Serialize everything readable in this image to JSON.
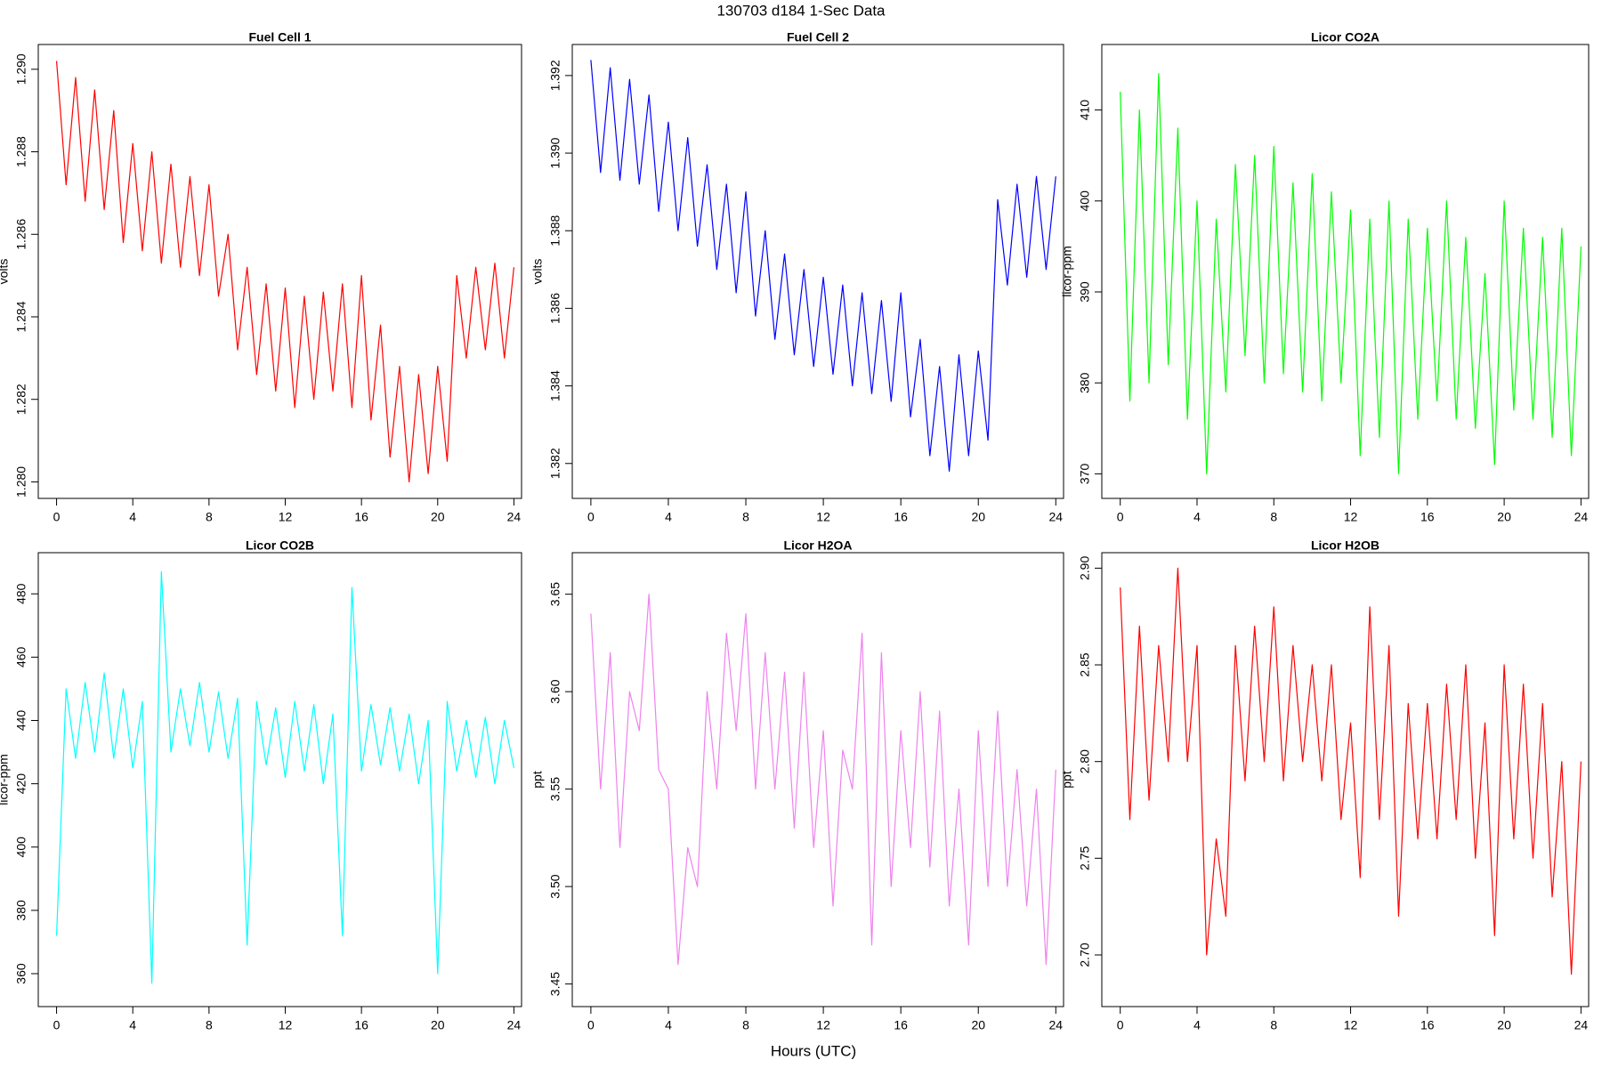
{
  "title": "130703   d184   1-Sec Data",
  "xlabel": "Hours (UTC)",
  "chart_data": [
    {
      "type": "line",
      "title": "Fuel Cell 1",
      "ylabel": "volts",
      "color": "#ff0000",
      "x": [
        0,
        0.5,
        1,
        1.5,
        2,
        2.5,
        3,
        3.5,
        4,
        4.5,
        5,
        5.5,
        6,
        6.5,
        7,
        7.5,
        8,
        8.5,
        9,
        9.5,
        10,
        10.5,
        11,
        11.5,
        12,
        12.5,
        13,
        13.5,
        14,
        14.5,
        15,
        15.5,
        16,
        16.5,
        17,
        17.5,
        18,
        18.5,
        19,
        19.5,
        20,
        20.5,
        21,
        21.5,
        22,
        22.5,
        23,
        23.5,
        24
      ],
      "values": [
        1.2902,
        1.2872,
        1.2898,
        1.2868,
        1.2895,
        1.2866,
        1.289,
        1.2858,
        1.2882,
        1.2856,
        1.288,
        1.2853,
        1.2877,
        1.2852,
        1.2874,
        1.285,
        1.2872,
        1.2845,
        1.286,
        1.2832,
        1.2852,
        1.2826,
        1.2848,
        1.2822,
        1.2847,
        1.2818,
        1.2845,
        1.282,
        1.2846,
        1.2822,
        1.2848,
        1.2818,
        1.285,
        1.2815,
        1.2838,
        1.2806,
        1.2828,
        1.28,
        1.2826,
        1.2802,
        1.2828,
        1.2805,
        1.285,
        1.283,
        1.2852,
        1.2832,
        1.2853,
        1.283,
        1.2852
      ],
      "xlim": [
        -0.96,
        24.4
      ],
      "xticks": [
        0,
        4,
        8,
        12,
        16,
        20,
        24
      ],
      "ylim": [
        1.2796,
        1.2906
      ],
      "yticks": [
        {
          "value": 1.28,
          "label": "1.280"
        },
        {
          "value": 1.282,
          "label": "1.282"
        },
        {
          "value": 1.284,
          "label": "1.284"
        },
        {
          "value": 1.286,
          "label": "1.286"
        },
        {
          "value": 1.288,
          "label": "1.288"
        },
        {
          "value": 1.29,
          "label": "1.290"
        }
      ]
    },
    {
      "type": "line",
      "title": "Fuel Cell 2",
      "ylabel": "volts",
      "color": "#0000ff",
      "x": [
        0,
        0.5,
        1,
        1.5,
        2,
        2.5,
        3,
        3.5,
        4,
        4.5,
        5,
        5.5,
        6,
        6.5,
        7,
        7.5,
        8,
        8.5,
        9,
        9.5,
        10,
        10.5,
        11,
        11.5,
        12,
        12.5,
        13,
        13.5,
        14,
        14.5,
        15,
        15.5,
        16,
        16.5,
        17,
        17.5,
        18,
        18.5,
        19,
        19.5,
        20,
        20.5,
        21,
        21.5,
        22,
        22.5,
        23,
        23.5,
        24
      ],
      "values": [
        1.3924,
        1.3895,
        1.3922,
        1.3893,
        1.3919,
        1.3892,
        1.3915,
        1.3885,
        1.3908,
        1.388,
        1.3904,
        1.3876,
        1.3897,
        1.387,
        1.3892,
        1.3864,
        1.389,
        1.3858,
        1.388,
        1.3852,
        1.3874,
        1.3848,
        1.387,
        1.3845,
        1.3868,
        1.3843,
        1.3866,
        1.384,
        1.3864,
        1.3838,
        1.3862,
        1.3836,
        1.3864,
        1.3832,
        1.3852,
        1.3822,
        1.3845,
        1.3818,
        1.3848,
        1.3822,
        1.3849,
        1.3826,
        1.3888,
        1.3866,
        1.3892,
        1.3868,
        1.3894,
        1.387,
        1.3894
      ],
      "xlim": [
        -0.96,
        24.4
      ],
      "xticks": [
        0,
        4,
        8,
        12,
        16,
        20,
        24
      ],
      "ylim": [
        1.3811,
        1.3928
      ],
      "yticks": [
        {
          "value": 1.382,
          "label": "1.382"
        },
        {
          "value": 1.384,
          "label": "1.384"
        },
        {
          "value": 1.386,
          "label": "1.386"
        },
        {
          "value": 1.388,
          "label": "1.388"
        },
        {
          "value": 1.39,
          "label": "1.390"
        },
        {
          "value": 1.392,
          "label": "1.392"
        }
      ]
    },
    {
      "type": "line",
      "title": "Licor CO2A",
      "ylabel": "licor-ppm",
      "color": "#00ff00",
      "x": [
        0,
        0.5,
        1,
        1.5,
        2,
        2.5,
        3,
        3.5,
        4,
        4.5,
        5,
        5.5,
        6,
        6.5,
        7,
        7.5,
        8,
        8.5,
        9,
        9.5,
        10,
        10.5,
        11,
        11.5,
        12,
        12.5,
        13,
        13.5,
        14,
        14.5,
        15,
        15.5,
        16,
        16.5,
        17,
        17.5,
        18,
        18.5,
        19,
        19.5,
        20,
        20.5,
        21,
        21.5,
        22,
        22.5,
        23,
        23.5,
        24
      ],
      "values": [
        412,
        378,
        410,
        380,
        414,
        382,
        408,
        376,
        400,
        370,
        398,
        379,
        404,
        383,
        405,
        380,
        406,
        381,
        402,
        379,
        403,
        378,
        401,
        380,
        399,
        372,
        398,
        374,
        400,
        370,
        398,
        376,
        397,
        378,
        400,
        376,
        396,
        375,
        392,
        371,
        400,
        377,
        397,
        376,
        396,
        374,
        397,
        372,
        395
      ],
      "xlim": [
        -0.96,
        24.4
      ],
      "xticks": [
        0,
        4,
        8,
        12,
        16,
        20,
        24
      ],
      "ylim": [
        367.3,
        417.2
      ],
      "yticks": [
        370,
        380,
        390,
        400,
        410
      ]
    },
    {
      "type": "line",
      "title": "Licor CO2B",
      "ylabel": "licor-ppm",
      "color": "#00ffff",
      "x": [
        0,
        0.5,
        1,
        1.5,
        2,
        2.5,
        3,
        3.5,
        4,
        4.5,
        5,
        5.5,
        6,
        6.5,
        7,
        7.5,
        8,
        8.5,
        9,
        9.5,
        10,
        10.5,
        11,
        11.5,
        12,
        12.5,
        13,
        13.5,
        14,
        14.5,
        15,
        15.5,
        16,
        16.5,
        17,
        17.5,
        18,
        18.5,
        19,
        19.5,
        20,
        20.5,
        21,
        21.5,
        22,
        22.5,
        23,
        23.5,
        24
      ],
      "values": [
        372,
        450,
        428,
        452,
        430,
        455,
        428,
        450,
        425,
        446,
        357,
        487,
        430,
        450,
        432,
        452,
        430,
        449,
        428,
        447,
        369,
        446,
        426,
        444,
        422,
        446,
        424,
        445,
        420,
        442,
        372,
        482,
        424,
        445,
        426,
        444,
        424,
        442,
        420,
        440,
        360,
        446,
        424,
        440,
        422,
        441,
        420,
        440,
        425
      ],
      "xlim": [
        -0.96,
        24.4
      ],
      "xticks": [
        0,
        4,
        8,
        12,
        16,
        20,
        24
      ],
      "ylim": [
        349.6,
        493
      ],
      "yticks": [
        360,
        380,
        400,
        420,
        440,
        460,
        480
      ]
    },
    {
      "type": "line",
      "title": "Licor H2OA",
      "ylabel": "ppt",
      "color": "#ee82ee",
      "x": [
        0,
        0.5,
        1,
        1.5,
        2,
        2.5,
        3,
        3.5,
        4,
        4.5,
        5,
        5.5,
        6,
        6.5,
        7,
        7.5,
        8,
        8.5,
        9,
        9.5,
        10,
        10.5,
        11,
        11.5,
        12,
        12.5,
        13,
        13.5,
        14,
        14.5,
        15,
        15.5,
        16,
        16.5,
        17,
        17.5,
        18,
        18.5,
        19,
        19.5,
        20,
        20.5,
        21,
        21.5,
        22,
        22.5,
        23,
        23.5,
        24
      ],
      "values": [
        3.64,
        3.55,
        3.62,
        3.52,
        3.6,
        3.58,
        3.65,
        3.56,
        3.55,
        3.46,
        3.52,
        3.5,
        3.6,
        3.55,
        3.63,
        3.58,
        3.64,
        3.55,
        3.62,
        3.55,
        3.61,
        3.53,
        3.61,
        3.52,
        3.58,
        3.49,
        3.57,
        3.55,
        3.63,
        3.47,
        3.62,
        3.5,
        3.58,
        3.52,
        3.6,
        3.51,
        3.59,
        3.49,
        3.55,
        3.47,
        3.58,
        3.5,
        3.59,
        3.5,
        3.56,
        3.49,
        3.55,
        3.46,
        3.56
      ],
      "xlim": [
        -0.96,
        24.4
      ],
      "xticks": [
        0,
        4,
        8,
        12,
        16,
        20,
        24
      ],
      "ylim": [
        3.4384,
        3.6713
      ],
      "yticks": [
        3.45,
        {
          "value": 3.5,
          "label": "3.50"
        },
        3.55,
        {
          "value": 3.6,
          "label": "3.60"
        },
        3.65
      ]
    },
    {
      "type": "line",
      "title": "Licor H2OB",
      "ylabel": "ppt",
      "color": "#ff0000",
      "x": [
        0,
        0.5,
        1,
        1.5,
        2,
        2.5,
        3,
        3.5,
        4,
        4.5,
        5,
        5.5,
        6,
        6.5,
        7,
        7.5,
        8,
        8.5,
        9,
        9.5,
        10,
        10.5,
        11,
        11.5,
        12,
        12.5,
        13,
        13.5,
        14,
        14.5,
        15,
        15.5,
        16,
        16.5,
        17,
        17.5,
        18,
        18.5,
        19,
        19.5,
        20,
        20.5,
        21,
        21.5,
        22,
        22.5,
        23,
        23.5,
        24
      ],
      "values": [
        2.89,
        2.77,
        2.87,
        2.78,
        2.86,
        2.8,
        2.9,
        2.8,
        2.86,
        2.7,
        2.76,
        2.72,
        2.86,
        2.79,
        2.87,
        2.8,
        2.88,
        2.79,
        2.86,
        2.8,
        2.85,
        2.79,
        2.85,
        2.77,
        2.82,
        2.74,
        2.88,
        2.77,
        2.86,
        2.72,
        2.83,
        2.76,
        2.83,
        2.76,
        2.84,
        2.77,
        2.85,
        2.75,
        2.82,
        2.71,
        2.85,
        2.76,
        2.84,
        2.75,
        2.83,
        2.73,
        2.8,
        2.69,
        2.8
      ],
      "xlim": [
        -0.96,
        24.4
      ],
      "xticks": [
        0,
        4,
        8,
        12,
        16,
        20,
        24
      ],
      "ylim": [
        2.6733,
        2.908
      ],
      "yticks": [
        {
          "value": 2.7,
          "label": "2.70"
        },
        2.75,
        {
          "value": 2.8,
          "label": "2.80"
        },
        2.85,
        {
          "value": 2.9,
          "label": "2.90"
        }
      ]
    }
  ]
}
